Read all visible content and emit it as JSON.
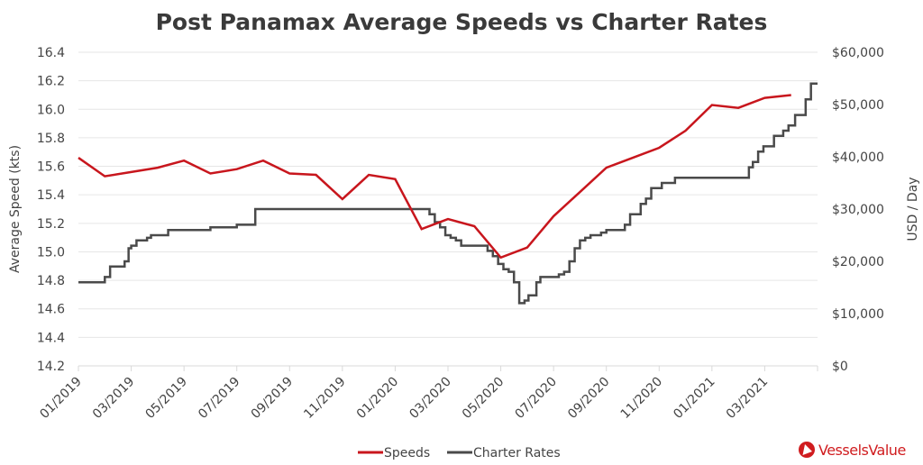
{
  "chart_data": {
    "type": "line",
    "title": "Post Panamax Average Speeds vs Charter Rates",
    "xlabel": "",
    "ylabel": "Average Speed (kts)",
    "y2label": "USD / Day",
    "ylim": [
      14.2,
      16.4
    ],
    "y2lim": [
      0,
      60000
    ],
    "xlim_months": [
      0,
      28
    ],
    "grid": true,
    "legend_position": "bottom-center",
    "x_tick_labels": [
      "01/2019",
      "03/2019",
      "05/2019",
      "07/2019",
      "09/2019",
      "11/2019",
      "01/2020",
      "03/2020",
      "05/2020",
      "07/2020",
      "09/2020",
      "11/2020",
      "01/2021",
      "03/2021"
    ],
    "y_tick_labels": [
      "14.2",
      "14.4",
      "14.6",
      "14.8",
      "15.0",
      "15.2",
      "15.4",
      "15.6",
      "15.8",
      "16.0",
      "16.2",
      "16.4"
    ],
    "y_tick_values": [
      14.2,
      14.4,
      14.6,
      14.8,
      15.0,
      15.2,
      15.4,
      15.6,
      15.8,
      16.0,
      16.2,
      16.4
    ],
    "y2_tick_labels": [
      "$0",
      "$10,000",
      "$20,000",
      "$30,000",
      "$40,000",
      "$50,000",
      "$60,000"
    ],
    "y2_tick_values": [
      0,
      10000,
      20000,
      30000,
      40000,
      50000,
      60000
    ],
    "series": [
      {
        "name": "Speeds",
        "axis": "left",
        "color": "#c8161d",
        "step": false,
        "x": [
          0,
          1,
          2,
          3,
          4,
          5,
          6,
          7,
          8,
          9,
          10,
          11,
          12,
          13,
          14,
          15,
          16,
          17,
          18,
          19,
          20,
          21,
          22,
          23,
          24,
          25,
          26,
          27
        ],
        "values": [
          15.66,
          15.53,
          15.56,
          15.59,
          15.64,
          15.55,
          15.58,
          15.64,
          15.55,
          15.54,
          15.37,
          15.54,
          15.51,
          15.16,
          15.23,
          15.18,
          14.96,
          15.03,
          15.25,
          15.42,
          15.59,
          15.66,
          15.73,
          15.85,
          16.03,
          16.01,
          16.08,
          16.1
        ]
      },
      {
        "name": "Charter Rates",
        "axis": "right",
        "color": "#4a4a4a",
        "step": true,
        "x": [
          0,
          1.0,
          1.2,
          1.4,
          1.75,
          1.9,
          2.0,
          2.2,
          2.4,
          2.6,
          2.75,
          3.0,
          3.4,
          4.5,
          5.0,
          5.7,
          6.0,
          6.7,
          7.0,
          7.5,
          13.3,
          13.5,
          13.7,
          13.9,
          14.1,
          14.3,
          14.5,
          14.7,
          15.0,
          15.5,
          15.7,
          15.9,
          16.1,
          16.3,
          16.5,
          16.7,
          16.9,
          17.05,
          17.35,
          17.5,
          17.7,
          17.9,
          18.2,
          18.4,
          18.6,
          18.8,
          19.0,
          19.2,
          19.4,
          19.6,
          19.8,
          20.0,
          20.5,
          20.7,
          20.9,
          21.3,
          21.5,
          21.7,
          21.9,
          22.1,
          22.6,
          22.8,
          23.3,
          25.4,
          25.55,
          25.75,
          25.95,
          26.1,
          26.35,
          26.7,
          26.9,
          27.15,
          27.3,
          27.55,
          27.75,
          28.0
        ],
        "values": [
          16000,
          17000,
          19000,
          19000,
          20000,
          22500,
          23000,
          24000,
          24000,
          24500,
          25000,
          25000,
          26000,
          26000,
          26500,
          26500,
          27000,
          30000,
          30000,
          30000,
          29000,
          27500,
          26500,
          25000,
          24500,
          24000,
          23000,
          23000,
          23000,
          22000,
          21000,
          19500,
          18500,
          18000,
          16000,
          12000,
          12500,
          13500,
          16000,
          17000,
          17000,
          17000,
          17500,
          18000,
          20000,
          22500,
          24000,
          24500,
          25000,
          25000,
          25500,
          26000,
          26000,
          27000,
          29000,
          31000,
          32000,
          34000,
          34000,
          35000,
          36000,
          36000,
          36000,
          38000,
          39000,
          41000,
          42000,
          42000,
          44000,
          45000,
          46000,
          48000,
          48000,
          51000,
          54000,
          54000
        ]
      }
    ]
  },
  "legend": {
    "items": [
      {
        "label": "Speeds",
        "color": "#c8161d"
      },
      {
        "label": "Charter Rates",
        "color": "#4a4a4a"
      }
    ]
  },
  "branding": {
    "logo_text": "VesselsValue",
    "logo_color": "#d01c1f"
  }
}
